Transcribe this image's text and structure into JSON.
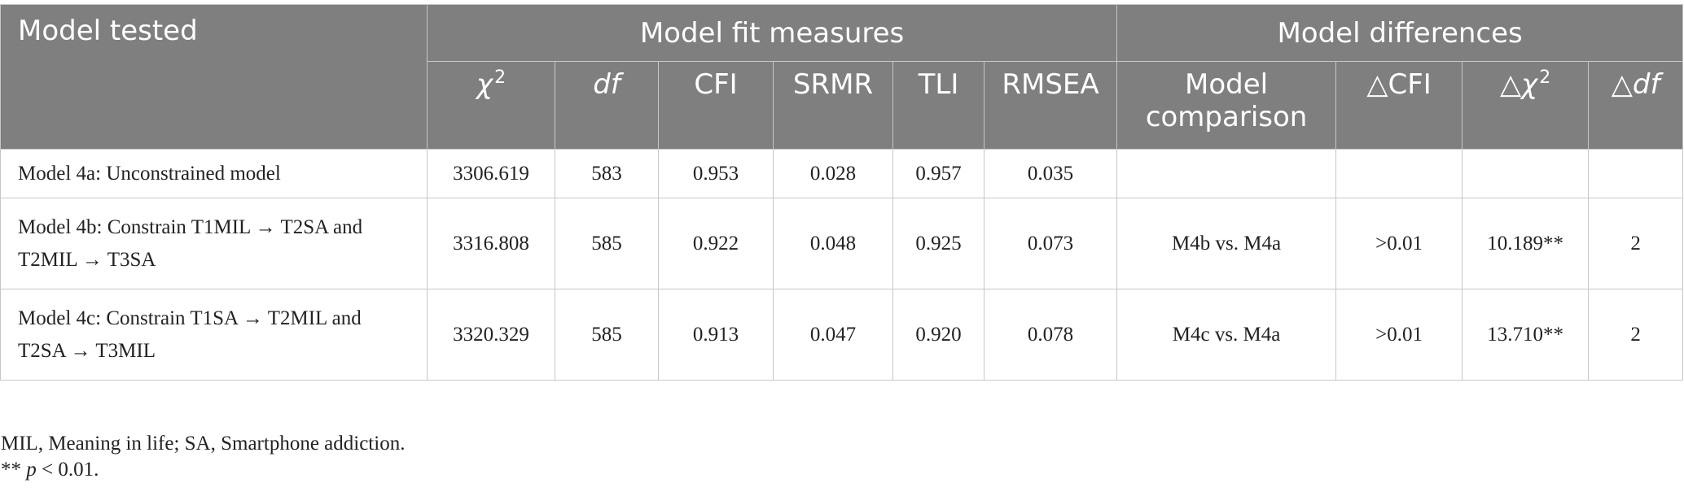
{
  "header": {
    "model_tested": "Model tested",
    "model_fit_measures": "Model fit measures",
    "model_differences": "Model differences",
    "chi_symbol": "χ",
    "chi_sup": "2",
    "df": "df",
    "cfi": "CFI",
    "srmr": "SRMR",
    "tli": "TLI",
    "rmsea": "RMSEA",
    "model_comparison_line1": "Model",
    "model_comparison_line2": "comparison",
    "delta_symbol": "△",
    "delta_cfi_label": "CFI",
    "delta_chi_symbol": "χ",
    "delta_chi_sup": "2",
    "delta_df_label": "df"
  },
  "rows": [
    {
      "model_line1": "Model 4a: Unconstrained model",
      "model_line2": "",
      "chi2": "3306.619",
      "df": "583",
      "cfi": "0.953",
      "srmr": "0.028",
      "tli": "0.957",
      "rmsea": "0.035",
      "comparison": "",
      "delta_cfi": "",
      "delta_chi2": "",
      "delta_df": ""
    },
    {
      "model_line1": "Model 4b: Constrain T1MIL → T2SA and",
      "model_line2": "T2MIL → T3SA",
      "chi2": "3316.808",
      "df": "585",
      "cfi": "0.922",
      "srmr": "0.048",
      "tli": "0.925",
      "rmsea": "0.073",
      "comparison": "M4b vs. M4a",
      "delta_cfi": ">0.01",
      "delta_chi2": "10.189**",
      "delta_df": "2"
    },
    {
      "model_line1": "Model 4c: Constrain T1SA → T2MIL and",
      "model_line2": "T2SA → T3MIL",
      "chi2": "3320.329",
      "df": "585",
      "cfi": "0.913",
      "srmr": "0.047",
      "tli": "0.920",
      "rmsea": "0.078",
      "comparison": "M4c vs. M4a",
      "delta_cfi": ">0.01",
      "delta_chi2": "13.710**",
      "delta_df": "2"
    }
  ],
  "footnotes": {
    "abbreviations": "MIL, Meaning in life; SA, Smartphone addiction.",
    "significance_stars": "**",
    "significance_p": "p",
    "significance_rest": " < 0.01."
  }
}
